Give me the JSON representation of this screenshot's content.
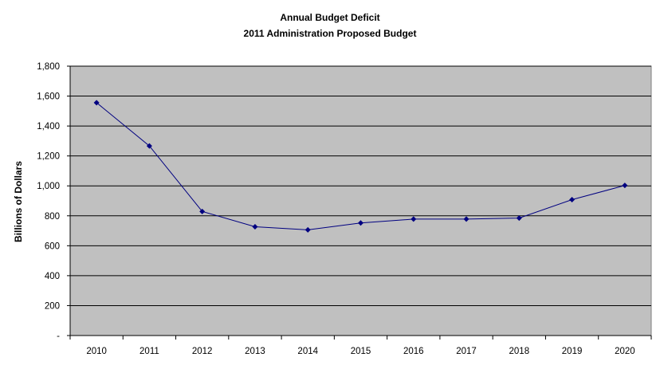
{
  "chart_data": {
    "type": "line",
    "title": "Annual Budget Deficit",
    "subtitle": "2011 Administration Proposed Budget",
    "xlabel": "",
    "ylabel": "Billions of Dollars",
    "categories": [
      "2010",
      "2011",
      "2012",
      "2013",
      "2014",
      "2015",
      "2016",
      "2017",
      "2018",
      "2019",
      "2020"
    ],
    "series": [
      {
        "values": [
          1556,
          1267,
          829,
          727,
          706,
          752,
          778,
          778,
          785,
          908,
          1003
        ]
      }
    ],
    "ylim": [
      0,
      1800
    ],
    "y_ticks": [
      0,
      200,
      400,
      600,
      800,
      1000,
      1200,
      1400,
      1600,
      1800
    ],
    "y_tick_labels": [
      "-",
      "200",
      "400",
      "600",
      "800",
      "1,000",
      "1,200",
      "1,400",
      "1,600",
      "1,800"
    ],
    "grid": true,
    "legend": "none",
    "colors": {
      "plot_background": "#c0c0c0",
      "line": "#000080",
      "marker": "#000080",
      "gridline": "#000000"
    }
  }
}
